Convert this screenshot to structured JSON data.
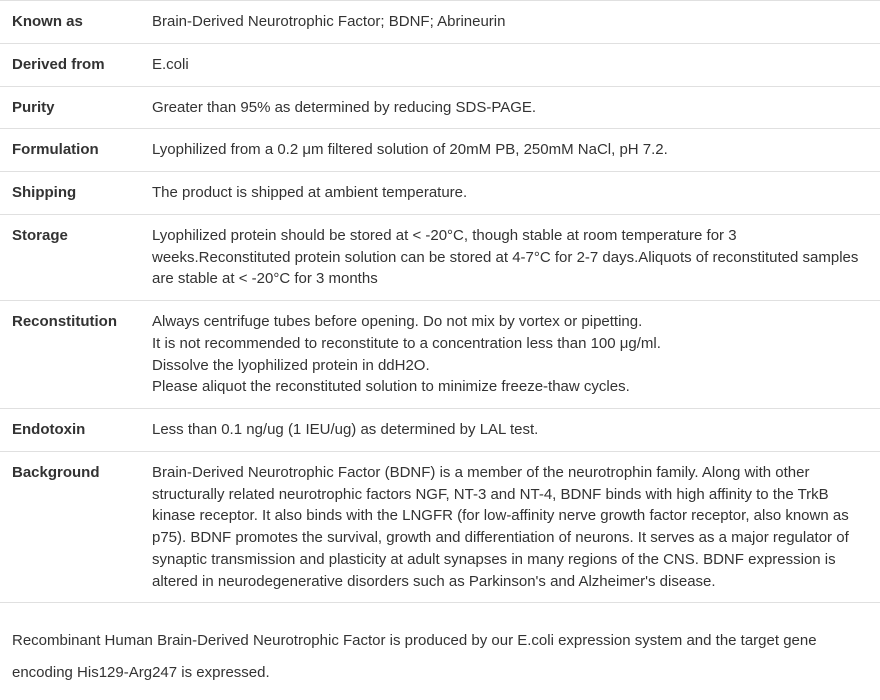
{
  "rows": [
    {
      "label": "Known as",
      "value": "Brain-Derived Neurotrophic Factor; BDNF; Abrineurin"
    },
    {
      "label": "Derived from",
      "value": "E.coli"
    },
    {
      "label": "Purity",
      "value": "Greater than 95% as determined by reducing SDS-PAGE."
    },
    {
      "label": "Formulation",
      "value": "Lyophilized from a 0.2 μm filtered solution of 20mM PB, 250mM NaCl, pH 7.2."
    },
    {
      "label": "Shipping",
      "value": "The product is shipped at ambient temperature."
    },
    {
      "label": "Storage",
      "value": "Lyophilized protein should be stored at < -20°C, though stable at room temperature for 3 weeks.Reconstituted protein solution can be stored at 4-7°C for 2-7 days.Aliquots of reconstituted samples are stable at < -20°C for 3 months"
    },
    {
      "label": "Reconstitution",
      "value": "Always centrifuge tubes before opening. Do not mix by vortex or pipetting.\nIt is not recommended to reconstitute to a concentration less than 100 μg/ml.\nDissolve the lyophilized protein in ddH2O.\nPlease aliquot the reconstituted solution to minimize freeze-thaw cycles."
    },
    {
      "label": "Endotoxin",
      "value": "Less than 0.1 ng/ug (1 IEU/ug) as determined by LAL test."
    },
    {
      "label": "Background",
      "value": "Brain-Derived Neurotrophic Factor (BDNF) is a member of the neurotrophin family. Along with other structurally related neurotrophic factors NGF, NT-3 and NT-4, BDNF binds with high affinity to the TrkB kinase receptor. It also binds with the LNGFR (for low-affinity nerve growth factor receptor, also known as p75). BDNF promotes the survival, growth and differentiation of neurons. It serves as a major regulator of synaptic transmission and plasticity at adult synapses in many regions of the CNS. BDNF expression is altered in neurodegenerative disorders such as Parkinson's and Alzheimer's disease."
    }
  ],
  "description": "Recombinant Human Brain-Derived Neurotrophic Factor is produced by our E.coli expression system and the target gene encoding His129-Arg247 is expressed."
}
